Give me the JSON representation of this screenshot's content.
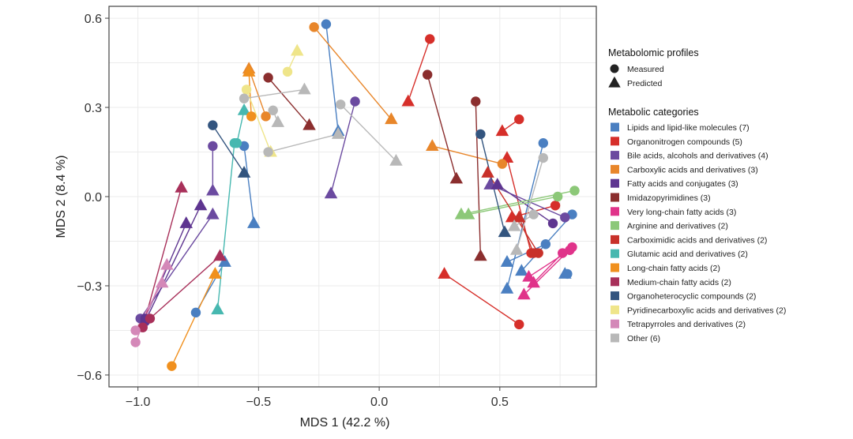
{
  "chart_data": {
    "type": "scatter",
    "xlabel": "MDS 1 (42.2 %)",
    "ylabel": "MDS 2 (8.4 %)",
    "xlim": [
      -1.12,
      0.9
    ],
    "ylim": [
      -0.64,
      0.64
    ],
    "xticks": [
      {
        "value": -1.0,
        "label": "−1.0"
      },
      {
        "value": -0.5,
        "label": "−0.5"
      },
      {
        "value": 0.0,
        "label": "0.0"
      },
      {
        "value": 0.5,
        "label": "0.5"
      }
    ],
    "yticks": [
      {
        "value": 0.6,
        "label": "0.6"
      },
      {
        "value": 0.3,
        "label": "0.3"
      },
      {
        "value": 0.0,
        "label": "0.0"
      },
      {
        "value": -0.3,
        "label": "−0.3"
      },
      {
        "value": -0.6,
        "label": "−0.6"
      }
    ],
    "grid": true,
    "shape_legend": {
      "title": "Metabolomic profiles",
      "items": [
        {
          "label": "Measured",
          "shape": "circle"
        },
        {
          "label": "Predicted",
          "shape": "triangle"
        }
      ]
    },
    "color_legend": {
      "title": "Metabolic categories",
      "items": [
        {
          "label": "Lipids and lipid-like molecules (7)",
          "color": "#4a7fc1"
        },
        {
          "label": "Organonitrogen compounds (5)",
          "color": "#d62f2a"
        },
        {
          "label": "Bile acids, alcohols and derivatives (4)",
          "color": "#6b4aa0"
        },
        {
          "label": "Carboxylic acids and derivatives (3)",
          "color": "#e8862a"
        },
        {
          "label": "Fatty acids and conjugates (3)",
          "color": "#5e3590"
        },
        {
          "label": "Imidazopyrimidines (3)",
          "color": "#8b2e2e"
        },
        {
          "label": "Very long-chain fatty acids (3)",
          "color": "#e0338a"
        },
        {
          "label": "Arginine and derivatives (2)",
          "color": "#8cc878"
        },
        {
          "label": "Carboximidic acids and derivatives (2)",
          "color": "#c8312a"
        },
        {
          "label": "Glutamic acid and derivatives (2)",
          "color": "#47b8b0"
        },
        {
          "label": "Long-chain fatty acids (2)",
          "color": "#f0901e"
        },
        {
          "label": "Medium-chain fatty acids (2)",
          "color": "#a8305a"
        },
        {
          "label": "Organoheterocyclic compounds (2)",
          "color": "#33557f"
        },
        {
          "label": "Pyridinecarboxylic acids and derivatives (2)",
          "color": "#efe58a"
        },
        {
          "label": "Tetrapyrroles and derivatives (2)",
          "color": "#d488b8"
        },
        {
          "label": "Other (6)",
          "color": "#b8b8b8"
        }
      ]
    },
    "pairs": [
      {
        "category": 0,
        "measured": [
          -0.22,
          0.58
        ],
        "predicted": [
          -0.17,
          0.22
        ]
      },
      {
        "category": 0,
        "measured": [
          -0.56,
          0.17
        ],
        "predicted": [
          -0.52,
          -0.09
        ]
      },
      {
        "category": 0,
        "measured": [
          0.68,
          0.18
        ],
        "predicted": [
          0.53,
          -0.31
        ]
      },
      {
        "category": 0,
        "measured": [
          0.8,
          -0.06
        ],
        "predicted": [
          0.59,
          -0.25
        ]
      },
      {
        "category": 0,
        "measured": [
          0.69,
          -0.16
        ],
        "predicted": [
          0.53,
          -0.22
        ]
      },
      {
        "category": 0,
        "measured": [
          0.78,
          -0.26
        ],
        "predicted": [
          0.77,
          -0.26
        ]
      },
      {
        "category": 0,
        "measured": [
          -0.76,
          -0.39
        ],
        "predicted": [
          -0.64,
          -0.22
        ]
      },
      {
        "category": 1,
        "measured": [
          0.21,
          0.53
        ],
        "predicted": [
          0.12,
          0.32
        ]
      },
      {
        "category": 1,
        "measured": [
          0.58,
          0.26
        ],
        "predicted": [
          0.51,
          0.22
        ]
      },
      {
        "category": 1,
        "measured": [
          0.58,
          -0.43
        ],
        "predicted": [
          0.27,
          -0.26
        ]
      },
      {
        "category": 1,
        "measured": [
          0.63,
          -0.19
        ],
        "predicted": [
          0.53,
          0.13
        ]
      },
      {
        "category": 1,
        "measured": [
          0.73,
          -0.03
        ],
        "predicted": [
          0.55,
          -0.07
        ]
      },
      {
        "category": 2,
        "measured": [
          -0.1,
          0.32
        ],
        "predicted": [
          -0.2,
          0.01
        ]
      },
      {
        "category": 2,
        "measured": [
          0.77,
          -0.07
        ],
        "predicted": [
          0.46,
          0.04
        ]
      },
      {
        "category": 2,
        "measured": [
          -0.69,
          0.17
        ],
        "predicted": [
          -0.69,
          0.02
        ]
      },
      {
        "category": 2,
        "measured": [
          -0.99,
          -0.41
        ],
        "predicted": [
          -0.69,
          -0.06
        ]
      },
      {
        "category": 3,
        "measured": [
          -0.27,
          0.57
        ],
        "predicted": [
          0.05,
          0.26
        ]
      },
      {
        "category": 3,
        "measured": [
          0.51,
          0.11
        ],
        "predicted": [
          0.22,
          0.17
        ]
      },
      {
        "category": 3,
        "measured": [
          -0.47,
          0.27
        ],
        "predicted": [
          -0.54,
          0.43
        ]
      },
      {
        "category": 4,
        "measured": [
          -0.97,
          -0.41
        ],
        "predicted": [
          -0.8,
          -0.09
        ]
      },
      {
        "category": 4,
        "measured": [
          0.72,
          -0.09
        ],
        "predicted": [
          0.49,
          0.04
        ]
      },
      {
        "category": 4,
        "measured": [
          -0.97,
          -0.42
        ],
        "predicted": [
          -0.74,
          -0.03
        ]
      },
      {
        "category": 5,
        "measured": [
          -0.46,
          0.4
        ],
        "predicted": [
          -0.29,
          0.24
        ]
      },
      {
        "category": 5,
        "measured": [
          0.2,
          0.41
        ],
        "predicted": [
          0.32,
          0.06
        ]
      },
      {
        "category": 5,
        "measured": [
          0.4,
          0.32
        ],
        "predicted": [
          0.42,
          -0.2
        ]
      },
      {
        "category": 6,
        "measured": [
          0.79,
          -0.18
        ],
        "predicted": [
          0.62,
          -0.27
        ]
      },
      {
        "category": 6,
        "measured": [
          0.8,
          -0.17
        ],
        "predicted": [
          0.6,
          -0.33
        ]
      },
      {
        "category": 6,
        "measured": [
          0.76,
          -0.19
        ],
        "predicted": [
          0.64,
          -0.29
        ]
      },
      {
        "category": 7,
        "measured": [
          0.81,
          0.02
        ],
        "predicted": [
          0.34,
          -0.06
        ]
      },
      {
        "category": 7,
        "measured": [
          0.74,
          0.0
        ],
        "predicted": [
          0.37,
          -0.06
        ]
      },
      {
        "category": 8,
        "measured": [
          0.66,
          -0.19
        ],
        "predicted": [
          0.45,
          0.08
        ]
      },
      {
        "category": 8,
        "measured": [
          0.64,
          -0.19
        ],
        "predicted": [
          0.58,
          -0.07
        ]
      },
      {
        "category": 9,
        "measured": [
          -0.6,
          0.18
        ],
        "predicted": [
          -0.67,
          -0.38
        ]
      },
      {
        "category": 9,
        "measured": [
          -0.59,
          0.18
        ],
        "predicted": [
          -0.56,
          0.29
        ]
      },
      {
        "category": 10,
        "measured": [
          -0.86,
          -0.57
        ],
        "predicted": [
          -0.68,
          -0.26
        ]
      },
      {
        "category": 10,
        "measured": [
          -0.53,
          0.27
        ],
        "predicted": [
          -0.54,
          0.42
        ]
      },
      {
        "category": 11,
        "measured": [
          -0.98,
          -0.44
        ],
        "predicted": [
          -0.82,
          0.03
        ]
      },
      {
        "category": 11,
        "measured": [
          -0.95,
          -0.41
        ],
        "predicted": [
          -0.66,
          -0.2
        ]
      },
      {
        "category": 12,
        "measured": [
          0.42,
          0.21
        ],
        "predicted": [
          0.52,
          -0.12
        ]
      },
      {
        "category": 12,
        "measured": [
          -0.69,
          0.24
        ],
        "predicted": [
          -0.56,
          0.08
        ]
      },
      {
        "category": 13,
        "measured": [
          -0.38,
          0.42
        ],
        "predicted": [
          -0.34,
          0.49
        ]
      },
      {
        "category": 13,
        "measured": [
          -0.55,
          0.36
        ],
        "predicted": [
          -0.45,
          0.15
        ]
      },
      {
        "category": 14,
        "measured": [
          -1.01,
          -0.49
        ],
        "predicted": [
          -0.88,
          -0.23
        ]
      },
      {
        "category": 14,
        "measured": [
          -1.01,
          -0.45
        ],
        "predicted": [
          -0.9,
          -0.29
        ]
      },
      {
        "category": 15,
        "measured": [
          -0.56,
          0.33
        ],
        "predicted": [
          -0.31,
          0.36
        ]
      },
      {
        "category": 15,
        "measured": [
          -0.44,
          0.29
        ],
        "predicted": [
          -0.42,
          0.25
        ]
      },
      {
        "category": 15,
        "measured": [
          -0.16,
          0.31
        ],
        "predicted": [
          0.07,
          0.12
        ]
      },
      {
        "category": 15,
        "measured": [
          0.68,
          0.13
        ],
        "predicted": [
          0.57,
          -0.18
        ]
      },
      {
        "category": 15,
        "measured": [
          0.64,
          -0.06
        ],
        "predicted": [
          0.56,
          -0.1
        ]
      },
      {
        "category": 15,
        "measured": [
          -0.46,
          0.15
        ],
        "predicted": [
          -0.17,
          0.21
        ]
      }
    ]
  }
}
